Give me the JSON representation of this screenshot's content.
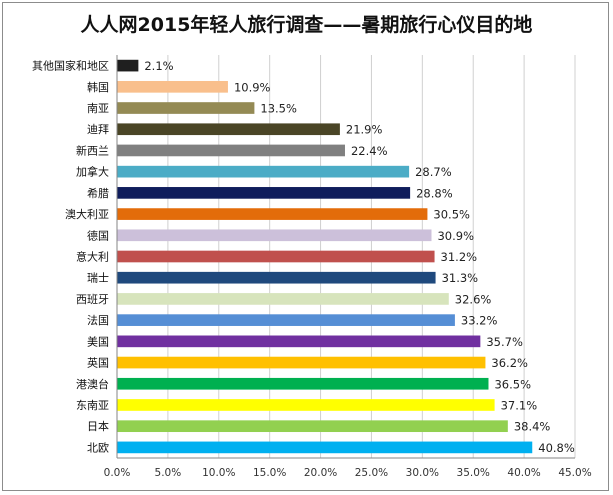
{
  "chart_data": {
    "type": "bar",
    "orientation": "horizontal",
    "title": "人人网2015年轻人旅行调查——暑期旅行心仪目的地",
    "categories": [
      "其他国家和地区",
      "韩国",
      "南亚",
      "迪拜",
      "新西兰",
      "加拿大",
      "希腊",
      "澳大利亚",
      "德国",
      "意大利",
      "瑞士",
      "西班牙",
      "法国",
      "美国",
      "英国",
      "港澳台",
      "东南亚",
      "日本",
      "北欧"
    ],
    "values": [
      2.1,
      10.9,
      13.5,
      21.9,
      22.4,
      28.7,
      28.8,
      30.5,
      30.9,
      31.2,
      31.3,
      32.6,
      33.2,
      35.7,
      36.2,
      36.5,
      37.1,
      38.4,
      40.8
    ],
    "value_labels": [
      "2.1%",
      "10.9%",
      "13.5%",
      "21.9%",
      "22.4%",
      "28.7%",
      "28.8%",
      "30.5%",
      "30.9%",
      "31.2%",
      "31.3%",
      "32.6%",
      "33.2%",
      "35.7%",
      "36.2%",
      "36.5%",
      "37.1%",
      "38.4%",
      "40.8%"
    ],
    "colors": [
      "#1f1f1f",
      "#f9bf8c",
      "#948a54",
      "#4a4526",
      "#808080",
      "#4bacc6",
      "#0f1d5c",
      "#e36c0a",
      "#ccc0da",
      "#c0504d",
      "#1f497d",
      "#d7e4bc",
      "#558ed5",
      "#7030a0",
      "#ffc000",
      "#00b050",
      "#ffff00",
      "#92d050",
      "#00b0f0"
    ],
    "xlim": [
      0,
      45
    ],
    "xticks": [
      0,
      5,
      10,
      15,
      20,
      25,
      30,
      35,
      40,
      45
    ],
    "xtick_labels": [
      "0.0%",
      "5.0%",
      "10.0%",
      "15.0%",
      "20.0%",
      "25.0%",
      "30.0%",
      "35.0%",
      "40.0%",
      "45.0%"
    ],
    "grid": true,
    "legend": "none",
    "xlabel": "",
    "ylabel": ""
  }
}
